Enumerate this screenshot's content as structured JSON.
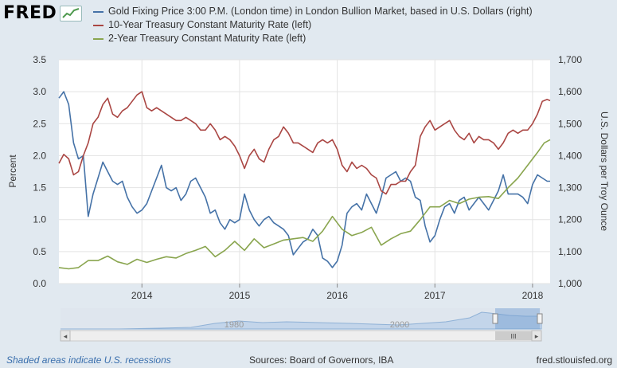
{
  "brand": {
    "logo_text": "FRED",
    "logo_icon": "fred-chart-icon"
  },
  "legend": {
    "items": [
      {
        "label": "Gold Fixing Price 3:00 P.M. (London time) in London Bullion Market, based in U.S. Dollars (right)",
        "color": "#4572a7"
      },
      {
        "label": "10-Year Treasury Constant Maturity Rate (left)",
        "color": "#aa4643"
      },
      {
        "label": "2-Year Treasury Constant Maturity Rate (left)",
        "color": "#89a54e"
      }
    ]
  },
  "axes": {
    "left_label": "Percent",
    "right_label": "U.S. Dollars per Troy Ounce",
    "left_ticks": [
      "0.0",
      "0.5",
      "1.0",
      "1.5",
      "2.0",
      "2.5",
      "3.0",
      "3.5"
    ],
    "right_ticks": [
      "1,000",
      "1,100",
      "1,200",
      "1,300",
      "1,400",
      "1,500",
      "1,600",
      "1,700"
    ],
    "x_ticks": [
      "2014",
      "2015",
      "2016",
      "2017",
      "2018"
    ]
  },
  "navigator": {
    "labels": [
      "1980",
      "2000"
    ],
    "scroll_grip": "III"
  },
  "footer": {
    "recession_note": "Shaded areas indicate U.S. recessions",
    "sources": "Sources: Board of Governors, IBA",
    "site": "fred.stlouisfed.org"
  },
  "chart_data": {
    "type": "line",
    "x_range": [
      2013.15,
      2018.18
    ],
    "left_ylim": [
      0,
      3.5
    ],
    "right_ylim": [
      1000,
      1700
    ],
    "grid": true,
    "series": [
      {
        "name": "Gold Fixing Price 3:00 P.M. (London time) in London Bullion Market, based in U.S. Dollars (right)",
        "axis": "right",
        "color": "#4572a7",
        "points": [
          [
            2013.15,
            1580
          ],
          [
            2013.2,
            1600
          ],
          [
            2013.25,
            1560
          ],
          [
            2013.3,
            1440
          ],
          [
            2013.35,
            1390
          ],
          [
            2013.4,
            1400
          ],
          [
            2013.45,
            1210
          ],
          [
            2013.5,
            1280
          ],
          [
            2013.55,
            1330
          ],
          [
            2013.6,
            1380
          ],
          [
            2013.65,
            1350
          ],
          [
            2013.7,
            1320
          ],
          [
            2013.75,
            1310
          ],
          [
            2013.8,
            1320
          ],
          [
            2013.85,
            1270
          ],
          [
            2013.9,
            1240
          ],
          [
            2013.95,
            1220
          ],
          [
            2014.0,
            1230
          ],
          [
            2014.05,
            1250
          ],
          [
            2014.1,
            1290
          ],
          [
            2014.15,
            1330
          ],
          [
            2014.2,
            1370
          ],
          [
            2014.25,
            1300
          ],
          [
            2014.3,
            1290
          ],
          [
            2014.35,
            1300
          ],
          [
            2014.4,
            1260
          ],
          [
            2014.45,
            1280
          ],
          [
            2014.5,
            1320
          ],
          [
            2014.55,
            1330
          ],
          [
            2014.6,
            1300
          ],
          [
            2014.65,
            1270
          ],
          [
            2014.7,
            1220
          ],
          [
            2014.75,
            1230
          ],
          [
            2014.8,
            1190
          ],
          [
            2014.85,
            1170
          ],
          [
            2014.9,
            1200
          ],
          [
            2014.95,
            1190
          ],
          [
            2015.0,
            1200
          ],
          [
            2015.05,
            1280
          ],
          [
            2015.1,
            1230
          ],
          [
            2015.15,
            1200
          ],
          [
            2015.2,
            1180
          ],
          [
            2015.25,
            1200
          ],
          [
            2015.3,
            1210
          ],
          [
            2015.35,
            1190
          ],
          [
            2015.4,
            1180
          ],
          [
            2015.45,
            1170
          ],
          [
            2015.5,
            1150
          ],
          [
            2015.55,
            1090
          ],
          [
            2015.6,
            1110
          ],
          [
            2015.65,
            1130
          ],
          [
            2015.7,
            1140
          ],
          [
            2015.75,
            1170
          ],
          [
            2015.8,
            1150
          ],
          [
            2015.85,
            1080
          ],
          [
            2015.9,
            1070
          ],
          [
            2015.95,
            1050
          ],
          [
            2016.0,
            1070
          ],
          [
            2016.05,
            1120
          ],
          [
            2016.1,
            1220
          ],
          [
            2016.15,
            1240
          ],
          [
            2016.2,
            1250
          ],
          [
            2016.25,
            1230
          ],
          [
            2016.3,
            1280
          ],
          [
            2016.35,
            1250
          ],
          [
            2016.4,
            1220
          ],
          [
            2016.45,
            1270
          ],
          [
            2016.5,
            1330
          ],
          [
            2016.55,
            1340
          ],
          [
            2016.6,
            1350
          ],
          [
            2016.65,
            1320
          ],
          [
            2016.7,
            1330
          ],
          [
            2016.75,
            1320
          ],
          [
            2016.8,
            1270
          ],
          [
            2016.85,
            1260
          ],
          [
            2016.9,
            1180
          ],
          [
            2016.95,
            1130
          ],
          [
            2017.0,
            1150
          ],
          [
            2017.05,
            1200
          ],
          [
            2017.1,
            1240
          ],
          [
            2017.15,
            1250
          ],
          [
            2017.2,
            1220
          ],
          [
            2017.25,
            1260
          ],
          [
            2017.3,
            1270
          ],
          [
            2017.35,
            1230
          ],
          [
            2017.4,
            1250
          ],
          [
            2017.45,
            1270
          ],
          [
            2017.5,
            1250
          ],
          [
            2017.55,
            1230
          ],
          [
            2017.6,
            1260
          ],
          [
            2017.65,
            1290
          ],
          [
            2017.7,
            1340
          ],
          [
            2017.75,
            1280
          ],
          [
            2017.8,
            1280
          ],
          [
            2017.85,
            1280
          ],
          [
            2017.9,
            1270
          ],
          [
            2017.95,
            1250
          ],
          [
            2018.0,
            1310
          ],
          [
            2018.05,
            1340
          ],
          [
            2018.1,
            1330
          ],
          [
            2018.15,
            1320
          ],
          [
            2018.18,
            1320
          ]
        ]
      },
      {
        "name": "10-Year Treasury Constant Maturity Rate (left)",
        "axis": "left",
        "color": "#aa4643",
        "points": [
          [
            2013.15,
            1.88
          ],
          [
            2013.2,
            2.02
          ],
          [
            2013.25,
            1.95
          ],
          [
            2013.3,
            1.7
          ],
          [
            2013.35,
            1.75
          ],
          [
            2013.4,
            2.0
          ],
          [
            2013.45,
            2.2
          ],
          [
            2013.5,
            2.5
          ],
          [
            2013.55,
            2.6
          ],
          [
            2013.6,
            2.8
          ],
          [
            2013.65,
            2.9
          ],
          [
            2013.7,
            2.65
          ],
          [
            2013.75,
            2.6
          ],
          [
            2013.8,
            2.7
          ],
          [
            2013.85,
            2.75
          ],
          [
            2013.9,
            2.85
          ],
          [
            2013.95,
            2.95
          ],
          [
            2014.0,
            3.0
          ],
          [
            2014.05,
            2.75
          ],
          [
            2014.1,
            2.7
          ],
          [
            2014.15,
            2.75
          ],
          [
            2014.2,
            2.7
          ],
          [
            2014.25,
            2.65
          ],
          [
            2014.3,
            2.6
          ],
          [
            2014.35,
            2.55
          ],
          [
            2014.4,
            2.55
          ],
          [
            2014.45,
            2.6
          ],
          [
            2014.5,
            2.55
          ],
          [
            2014.55,
            2.5
          ],
          [
            2014.6,
            2.4
          ],
          [
            2014.65,
            2.4
          ],
          [
            2014.7,
            2.5
          ],
          [
            2014.75,
            2.4
          ],
          [
            2014.8,
            2.25
          ],
          [
            2014.85,
            2.3
          ],
          [
            2014.9,
            2.25
          ],
          [
            2014.95,
            2.15
          ],
          [
            2015.0,
            2.0
          ],
          [
            2015.05,
            1.8
          ],
          [
            2015.1,
            2.0
          ],
          [
            2015.15,
            2.1
          ],
          [
            2015.2,
            1.95
          ],
          [
            2015.25,
            1.9
          ],
          [
            2015.3,
            2.1
          ],
          [
            2015.35,
            2.25
          ],
          [
            2015.4,
            2.3
          ],
          [
            2015.45,
            2.45
          ],
          [
            2015.5,
            2.35
          ],
          [
            2015.55,
            2.2
          ],
          [
            2015.6,
            2.2
          ],
          [
            2015.65,
            2.15
          ],
          [
            2015.7,
            2.1
          ],
          [
            2015.75,
            2.05
          ],
          [
            2015.8,
            2.2
          ],
          [
            2015.85,
            2.25
          ],
          [
            2015.9,
            2.2
          ],
          [
            2015.95,
            2.25
          ],
          [
            2016.0,
            2.1
          ],
          [
            2016.05,
            1.85
          ],
          [
            2016.1,
            1.75
          ],
          [
            2016.15,
            1.9
          ],
          [
            2016.2,
            1.8
          ],
          [
            2016.25,
            1.85
          ],
          [
            2016.3,
            1.8
          ],
          [
            2016.35,
            1.7
          ],
          [
            2016.4,
            1.65
          ],
          [
            2016.45,
            1.45
          ],
          [
            2016.5,
            1.4
          ],
          [
            2016.55,
            1.55
          ],
          [
            2016.6,
            1.55
          ],
          [
            2016.65,
            1.6
          ],
          [
            2016.7,
            1.6
          ],
          [
            2016.75,
            1.75
          ],
          [
            2016.8,
            1.85
          ],
          [
            2016.85,
            2.3
          ],
          [
            2016.9,
            2.45
          ],
          [
            2016.95,
            2.55
          ],
          [
            2017.0,
            2.4
          ],
          [
            2017.05,
            2.45
          ],
          [
            2017.1,
            2.5
          ],
          [
            2017.15,
            2.55
          ],
          [
            2017.2,
            2.4
          ],
          [
            2017.25,
            2.3
          ],
          [
            2017.3,
            2.25
          ],
          [
            2017.35,
            2.35
          ],
          [
            2017.4,
            2.2
          ],
          [
            2017.45,
            2.3
          ],
          [
            2017.5,
            2.25
          ],
          [
            2017.55,
            2.25
          ],
          [
            2017.6,
            2.2
          ],
          [
            2017.65,
            2.1
          ],
          [
            2017.7,
            2.2
          ],
          [
            2017.75,
            2.35
          ],
          [
            2017.8,
            2.4
          ],
          [
            2017.85,
            2.35
          ],
          [
            2017.9,
            2.4
          ],
          [
            2017.95,
            2.4
          ],
          [
            2018.0,
            2.5
          ],
          [
            2018.05,
            2.65
          ],
          [
            2018.1,
            2.85
          ],
          [
            2018.15,
            2.88
          ],
          [
            2018.18,
            2.86
          ]
        ]
      },
      {
        "name": "2-Year Treasury Constant Maturity Rate (left)",
        "axis": "left",
        "color": "#89a54e",
        "points": [
          [
            2013.15,
            0.25
          ],
          [
            2013.25,
            0.23
          ],
          [
            2013.35,
            0.25
          ],
          [
            2013.45,
            0.36
          ],
          [
            2013.55,
            0.36
          ],
          [
            2013.65,
            0.43
          ],
          [
            2013.75,
            0.34
          ],
          [
            2013.85,
            0.3
          ],
          [
            2013.95,
            0.38
          ],
          [
            2014.05,
            0.33
          ],
          [
            2014.15,
            0.38
          ],
          [
            2014.25,
            0.42
          ],
          [
            2014.35,
            0.4
          ],
          [
            2014.45,
            0.47
          ],
          [
            2014.55,
            0.52
          ],
          [
            2014.65,
            0.58
          ],
          [
            2014.75,
            0.42
          ],
          [
            2014.85,
            0.52
          ],
          [
            2014.95,
            0.66
          ],
          [
            2015.05,
            0.52
          ],
          [
            2015.15,
            0.7
          ],
          [
            2015.25,
            0.56
          ],
          [
            2015.35,
            0.62
          ],
          [
            2015.45,
            0.68
          ],
          [
            2015.55,
            0.7
          ],
          [
            2015.65,
            0.72
          ],
          [
            2015.75,
            0.66
          ],
          [
            2015.85,
            0.82
          ],
          [
            2015.95,
            1.05
          ],
          [
            2016.05,
            0.85
          ],
          [
            2016.15,
            0.75
          ],
          [
            2016.25,
            0.8
          ],
          [
            2016.35,
            0.88
          ],
          [
            2016.45,
            0.6
          ],
          [
            2016.55,
            0.7
          ],
          [
            2016.65,
            0.78
          ],
          [
            2016.75,
            0.82
          ],
          [
            2016.85,
            1.0
          ],
          [
            2016.95,
            1.2
          ],
          [
            2017.05,
            1.2
          ],
          [
            2017.15,
            1.3
          ],
          [
            2017.25,
            1.25
          ],
          [
            2017.35,
            1.32
          ],
          [
            2017.45,
            1.35
          ],
          [
            2017.55,
            1.36
          ],
          [
            2017.65,
            1.33
          ],
          [
            2017.75,
            1.5
          ],
          [
            2017.85,
            1.65
          ],
          [
            2017.95,
            1.85
          ],
          [
            2018.05,
            2.05
          ],
          [
            2018.12,
            2.2
          ],
          [
            2018.18,
            2.25
          ]
        ]
      }
    ]
  }
}
